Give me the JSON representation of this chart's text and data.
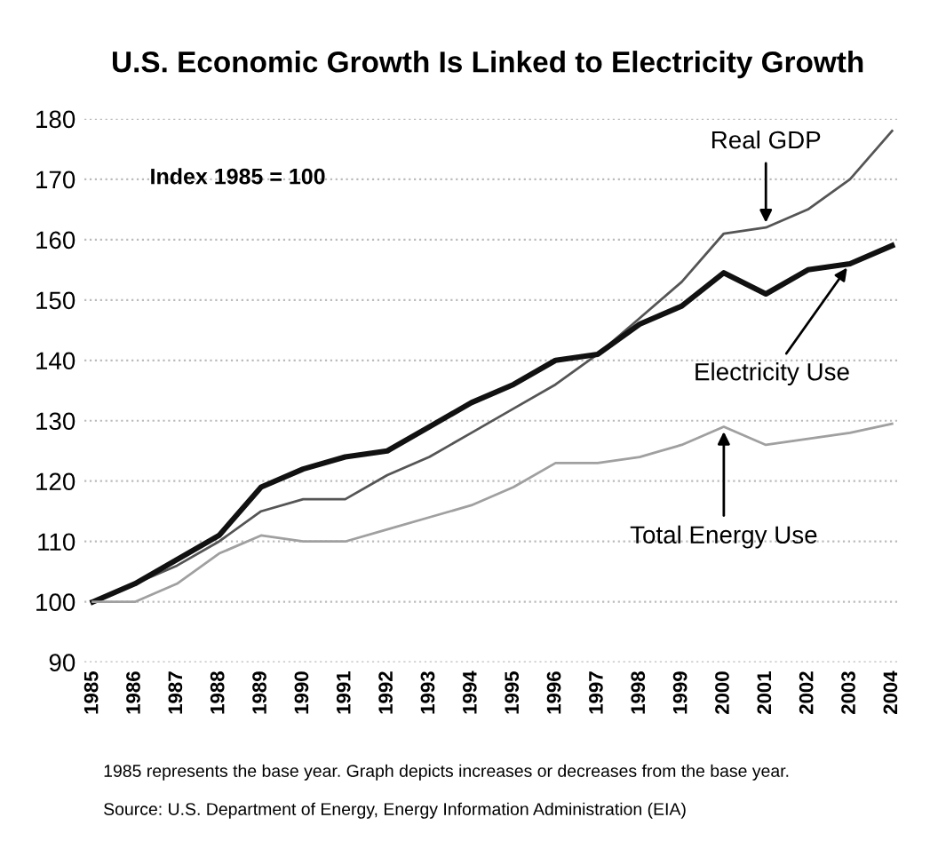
{
  "chart_data": {
    "type": "line",
    "title": "U.S. Economic Growth Is Linked to Electricity Growth",
    "categories": [
      "1985",
      "1986",
      "1987",
      "1988",
      "1989",
      "1990",
      "1991",
      "1992",
      "1993",
      "1994",
      "1995",
      "1996",
      "1997",
      "1998",
      "1999",
      "2000",
      "2001",
      "2002",
      "2003",
      "2004"
    ],
    "series": [
      {
        "color": "#555555",
        "values": [
          100,
          103,
          106,
          110,
          115,
          117,
          117,
          121,
          124,
          128,
          132,
          136,
          141,
          147,
          153,
          161,
          162,
          165,
          170,
          178
        ]
      },
      {
        "color": "#111111",
        "values": [
          100,
          103,
          107,
          111,
          119,
          122,
          124,
          125,
          129,
          133,
          136,
          140,
          141,
          146,
          149,
          154.5,
          151,
          155,
          156,
          159
        ]
      },
      {
        "color": "#a0a0a0",
        "values": [
          100,
          100,
          103,
          108,
          111,
          110,
          110,
          112,
          114,
          116,
          119,
          123,
          123,
          124,
          126,
          129,
          126,
          127,
          128,
          129.5
        ]
      }
    ],
    "ylim": [
      90,
      180
    ],
    "yticks": [
      90,
      100,
      110,
      120,
      130,
      140,
      150,
      160,
      170,
      180
    ],
    "grid": "y",
    "annotations": [
      {
        "text": "Real GDP",
        "x": "2001",
        "y": 162
      },
      {
        "text": "Electricity Use",
        "x": "2003",
        "y": 156
      },
      {
        "text": "Total Energy Use",
        "x": "2000",
        "y": 129
      },
      "Index 1985 = 100",
      "1985 represents the base year. Graph depicts increases or decreases from the base year.",
      "Source: U.S. Department of Energy, Energy Information Administration (EIA)"
    ]
  }
}
